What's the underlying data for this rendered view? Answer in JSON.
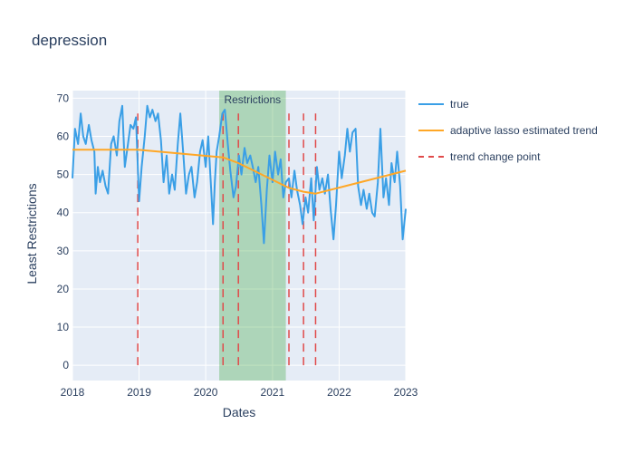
{
  "chart_data": {
    "type": "line",
    "title": "depression",
    "xlabel": "Dates",
    "ylabel": "Least Restrictions",
    "xlim": [
      "2018-01-01",
      "2023-01-01"
    ],
    "ylim": [
      -4,
      72
    ],
    "x_ticks": [
      "2018",
      "2019",
      "2020",
      "2021",
      "2022",
      "2023"
    ],
    "y_ticks": [
      0,
      10,
      20,
      30,
      40,
      50,
      60,
      70
    ],
    "grid": true,
    "legend_position": "right",
    "shaded_region": {
      "label": "Restrictions",
      "start": "2020-03-15",
      "end": "2021-03-15",
      "color": "#2ca02c"
    },
    "change_points": [
      "2018-12-25",
      "2020-04-05",
      "2020-06-28",
      "2021-04-01",
      "2021-06-20",
      "2021-08-25"
    ],
    "change_point_top": 66,
    "series": [
      {
        "name": "true",
        "color": "#3a9fe6",
        "points": [
          [
            "2018-01-01",
            49
          ],
          [
            "2018-01-15",
            62
          ],
          [
            "2018-02-01",
            58
          ],
          [
            "2018-02-15",
            66
          ],
          [
            "2018-03-01",
            60
          ],
          [
            "2018-03-15",
            58
          ],
          [
            "2018-04-01",
            63
          ],
          [
            "2018-04-15",
            59
          ],
          [
            "2018-05-01",
            56
          ],
          [
            "2018-05-08",
            45
          ],
          [
            "2018-05-20",
            52
          ],
          [
            "2018-06-01",
            48
          ],
          [
            "2018-06-15",
            51
          ],
          [
            "2018-07-01",
            47
          ],
          [
            "2018-07-15",
            45
          ],
          [
            "2018-08-01",
            58
          ],
          [
            "2018-08-15",
            60
          ],
          [
            "2018-09-01",
            55
          ],
          [
            "2018-09-15",
            64
          ],
          [
            "2018-10-01",
            68
          ],
          [
            "2018-10-15",
            52
          ],
          [
            "2018-11-01",
            58
          ],
          [
            "2018-11-15",
            63
          ],
          [
            "2018-12-01",
            62
          ],
          [
            "2018-12-15",
            65
          ],
          [
            "2019-01-01",
            43
          ],
          [
            "2019-01-15",
            52
          ],
          [
            "2019-02-01",
            60
          ],
          [
            "2019-02-15",
            68
          ],
          [
            "2019-03-01",
            65
          ],
          [
            "2019-03-15",
            67
          ],
          [
            "2019-04-01",
            64
          ],
          [
            "2019-04-15",
            66
          ],
          [
            "2019-05-01",
            59
          ],
          [
            "2019-05-15",
            48
          ],
          [
            "2019-06-01",
            55
          ],
          [
            "2019-06-15",
            45
          ],
          [
            "2019-07-01",
            50
          ],
          [
            "2019-07-15",
            46
          ],
          [
            "2019-08-01",
            58
          ],
          [
            "2019-08-15",
            66
          ],
          [
            "2019-09-01",
            55
          ],
          [
            "2019-09-15",
            45
          ],
          [
            "2019-10-01",
            50
          ],
          [
            "2019-10-15",
            52
          ],
          [
            "2019-11-01",
            44
          ],
          [
            "2019-11-15",
            48
          ],
          [
            "2019-12-01",
            56
          ],
          [
            "2019-12-15",
            59
          ],
          [
            "2020-01-01",
            52
          ],
          [
            "2020-01-15",
            60
          ],
          [
            "2020-02-01",
            45
          ],
          [
            "2020-02-10",
            37
          ],
          [
            "2020-02-20",
            48
          ],
          [
            "2020-03-01",
            56
          ],
          [
            "2020-03-15",
            60
          ],
          [
            "2020-04-01",
            66
          ],
          [
            "2020-04-15",
            67
          ],
          [
            "2020-05-01",
            58
          ],
          [
            "2020-05-15",
            51
          ],
          [
            "2020-06-01",
            44
          ],
          [
            "2020-06-15",
            47
          ],
          [
            "2020-07-01",
            55
          ],
          [
            "2020-07-15",
            50
          ],
          [
            "2020-08-01",
            57
          ],
          [
            "2020-08-15",
            53
          ],
          [
            "2020-09-01",
            55
          ],
          [
            "2020-09-15",
            52
          ],
          [
            "2020-10-01",
            48
          ],
          [
            "2020-10-15",
            52
          ],
          [
            "2020-11-01",
            42
          ],
          [
            "2020-11-15",
            32
          ],
          [
            "2020-12-01",
            46
          ],
          [
            "2020-12-15",
            55
          ],
          [
            "2021-01-01",
            48
          ],
          [
            "2021-01-15",
            56
          ],
          [
            "2021-02-01",
            50
          ],
          [
            "2021-02-15",
            54
          ],
          [
            "2021-03-01",
            44
          ],
          [
            "2021-03-15",
            48
          ],
          [
            "2021-04-01",
            49
          ],
          [
            "2021-04-15",
            44
          ],
          [
            "2021-05-01",
            51
          ],
          [
            "2021-05-15",
            46
          ],
          [
            "2021-06-01",
            42
          ],
          [
            "2021-06-15",
            37
          ],
          [
            "2021-07-01",
            44
          ],
          [
            "2021-07-15",
            40
          ],
          [
            "2021-08-01",
            49
          ],
          [
            "2021-08-15",
            38
          ],
          [
            "2021-09-01",
            52
          ],
          [
            "2021-09-15",
            46
          ],
          [
            "2021-10-01",
            49
          ],
          [
            "2021-10-15",
            45
          ],
          [
            "2021-11-01",
            50
          ],
          [
            "2021-11-15",
            41
          ],
          [
            "2021-12-01",
            33
          ],
          [
            "2021-12-15",
            42
          ],
          [
            "2022-01-01",
            56
          ],
          [
            "2022-01-15",
            49
          ],
          [
            "2022-02-01",
            55
          ],
          [
            "2022-02-15",
            62
          ],
          [
            "2022-03-01",
            56
          ],
          [
            "2022-03-15",
            61
          ],
          [
            "2022-04-01",
            62
          ],
          [
            "2022-04-15",
            47
          ],
          [
            "2022-05-01",
            42
          ],
          [
            "2022-05-15",
            46
          ],
          [
            "2022-06-01",
            41
          ],
          [
            "2022-06-15",
            45
          ],
          [
            "2022-07-01",
            40
          ],
          [
            "2022-07-15",
            39
          ],
          [
            "2022-08-01",
            48
          ],
          [
            "2022-08-15",
            62
          ],
          [
            "2022-09-01",
            44
          ],
          [
            "2022-09-15",
            49
          ],
          [
            "2022-10-01",
            42
          ],
          [
            "2022-10-15",
            53
          ],
          [
            "2022-11-01",
            48
          ],
          [
            "2022-11-15",
            56
          ],
          [
            "2022-12-01",
            47
          ],
          [
            "2022-12-15",
            33
          ],
          [
            "2023-01-01",
            41
          ]
        ]
      },
      {
        "name": "adaptive lasso estimated trend",
        "color": "#ffa726",
        "points": [
          [
            "2018-01-01",
            56.5
          ],
          [
            "2018-12-25",
            56.5
          ],
          [
            "2020-04-05",
            54.5
          ],
          [
            "2020-06-28",
            53.0
          ],
          [
            "2021-04-01",
            46.5
          ],
          [
            "2021-06-20",
            45.5
          ],
          [
            "2021-08-25",
            45.0
          ],
          [
            "2023-01-01",
            51.0
          ]
        ]
      },
      {
        "name": "trend change point",
        "color": "#e04a4a",
        "dash": true
      }
    ]
  }
}
